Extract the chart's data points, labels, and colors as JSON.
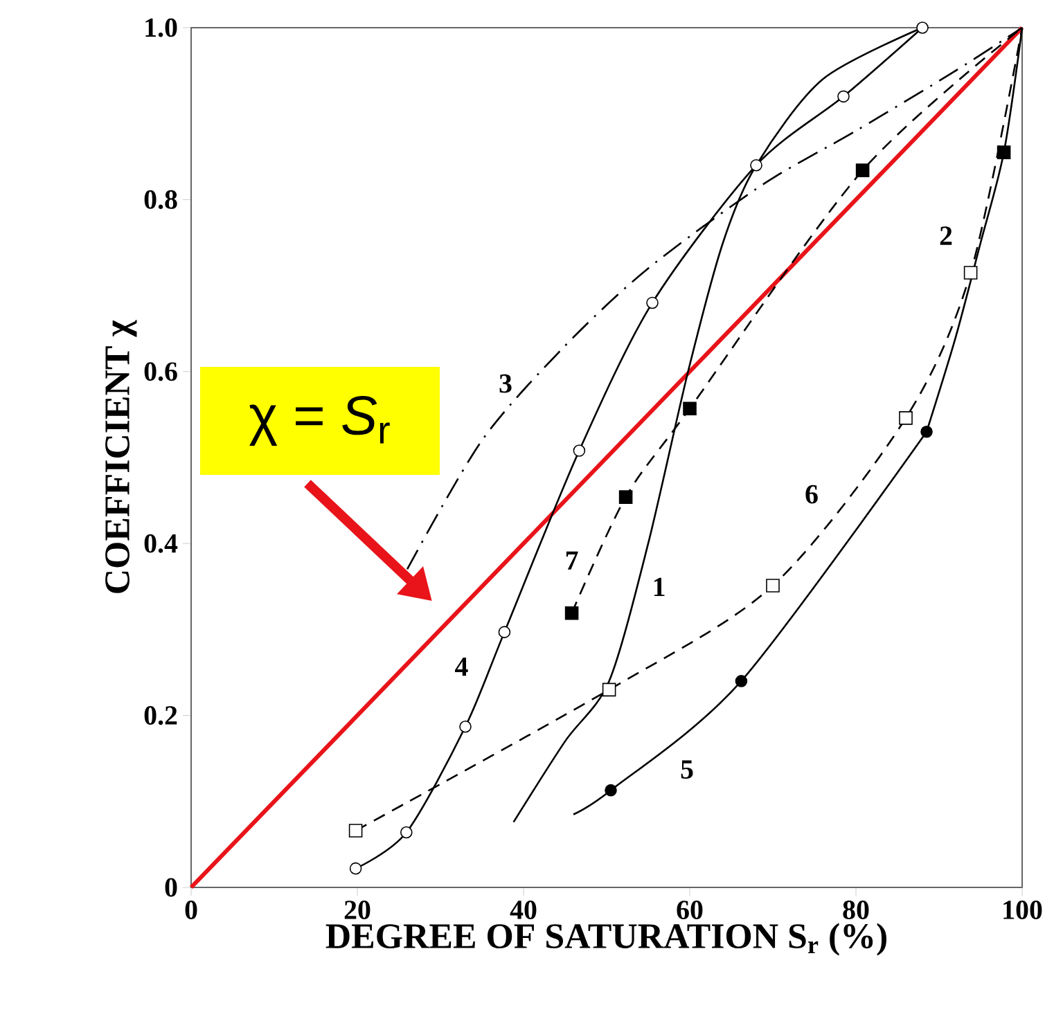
{
  "chart_data": {
    "type": "line",
    "xlabel": "DEGREE OF SATURATION S$_{r}$ (%)",
    "ylabel": "COEFFICIENT χ",
    "xlim": [
      0,
      100
    ],
    "ylim": [
      0,
      1
    ],
    "xticks": [
      0,
      20,
      40,
      60,
      80,
      100
    ],
    "yticks": [
      0,
      0.2,
      0.4,
      0.6,
      0.8,
      {
        "value": 1,
        "label": "1.0"
      }
    ],
    "series": [
      {
        "color": "#e8141a",
        "x": [
          0,
          100
        ],
        "values": [
          0,
          1
        ],
        "marker": "none",
        "line_style": "solid"
      },
      {
        "name": "1",
        "color": "#000000",
        "x": [
          38.8,
          45,
          50.3,
          55,
          59.8,
          64,
          68,
          76,
          88
        ],
        "values": [
          0.076,
          0.17,
          0.24,
          0.4,
          0.6,
          0.75,
          0.84,
          0.94,
          1.0
        ],
        "marker": "none",
        "line_style": "solid"
      },
      {
        "name": "2",
        "color": "#000000",
        "x": [
          88.5,
          92,
          95,
          97.8,
          100
        ],
        "values": [
          0.53,
          0.64,
          0.75,
          0.855,
          1.0
        ],
        "marker": "none",
        "line_style": "solid"
      },
      {
        "name": "3",
        "color": "#000000",
        "x": [
          26,
          35,
          45,
          55,
          68.7,
          80,
          92,
          100
        ],
        "values": [
          0.37,
          0.52,
          0.63,
          0.72,
          0.817,
          0.88,
          0.95,
          1.0
        ],
        "marker": "none",
        "line_style": "dashdot"
      },
      {
        "name": "4",
        "color": "#000000",
        "x": [
          19.8,
          25.9,
          33,
          37.7,
          46.7,
          55.5,
          68,
          78.5,
          88
        ],
        "values": [
          0.022,
          0.064,
          0.187,
          0.297,
          0.508,
          0.68,
          0.84,
          0.92,
          1.0
        ],
        "marker": "circle",
        "colors": [
          "#ffffff",
          "#ffffff",
          "#ffffff",
          "#ffffff",
          "#ffffff",
          "#ffffff",
          "#ffffff",
          "#ffffff",
          "#ffffff"
        ],
        "line_style": "solid"
      },
      {
        "name": "5",
        "color": "#000000",
        "x": [
          46,
          50.5,
          66.2,
          88.5
        ],
        "values": [
          0.085,
          0.113,
          0.24,
          0.53
        ],
        "marker": "circle",
        "colors": [
          null,
          "#000000",
          "#000000",
          "#000000"
        ],
        "line_style": "solid"
      },
      {
        "name": "6",
        "color": "#000000",
        "x": [
          19.8,
          50.3,
          70,
          86,
          93.8,
          100
        ],
        "values": [
          0.066,
          0.23,
          0.351,
          0.546,
          0.715,
          1.0
        ],
        "marker": "square",
        "colors": [
          "#ffffff",
          "#ffffff",
          "#ffffff",
          "#ffffff",
          "#ffffff",
          null
        ],
        "line_style": "dashed"
      },
      {
        "name": "7",
        "color": "#000000",
        "x": [
          45.8,
          52.3,
          60,
          80.8,
          100
        ],
        "values": [
          0.319,
          0.454,
          0.557,
          0.834,
          1.0
        ],
        "marker": "square",
        "colors": [
          "#000000",
          "#000000",
          "#000000",
          "#000000",
          null
        ],
        "line_style": "dashed"
      },
      {
        "type": "scatter",
        "color": "#000000",
        "x": [
          97.8
        ],
        "values": [
          0.855
        ],
        "marker": "square",
        "colors": [
          "#000000"
        ]
      }
    ],
    "annotations": [
      "χ = *S*$_{r}$"
    ]
  }
}
